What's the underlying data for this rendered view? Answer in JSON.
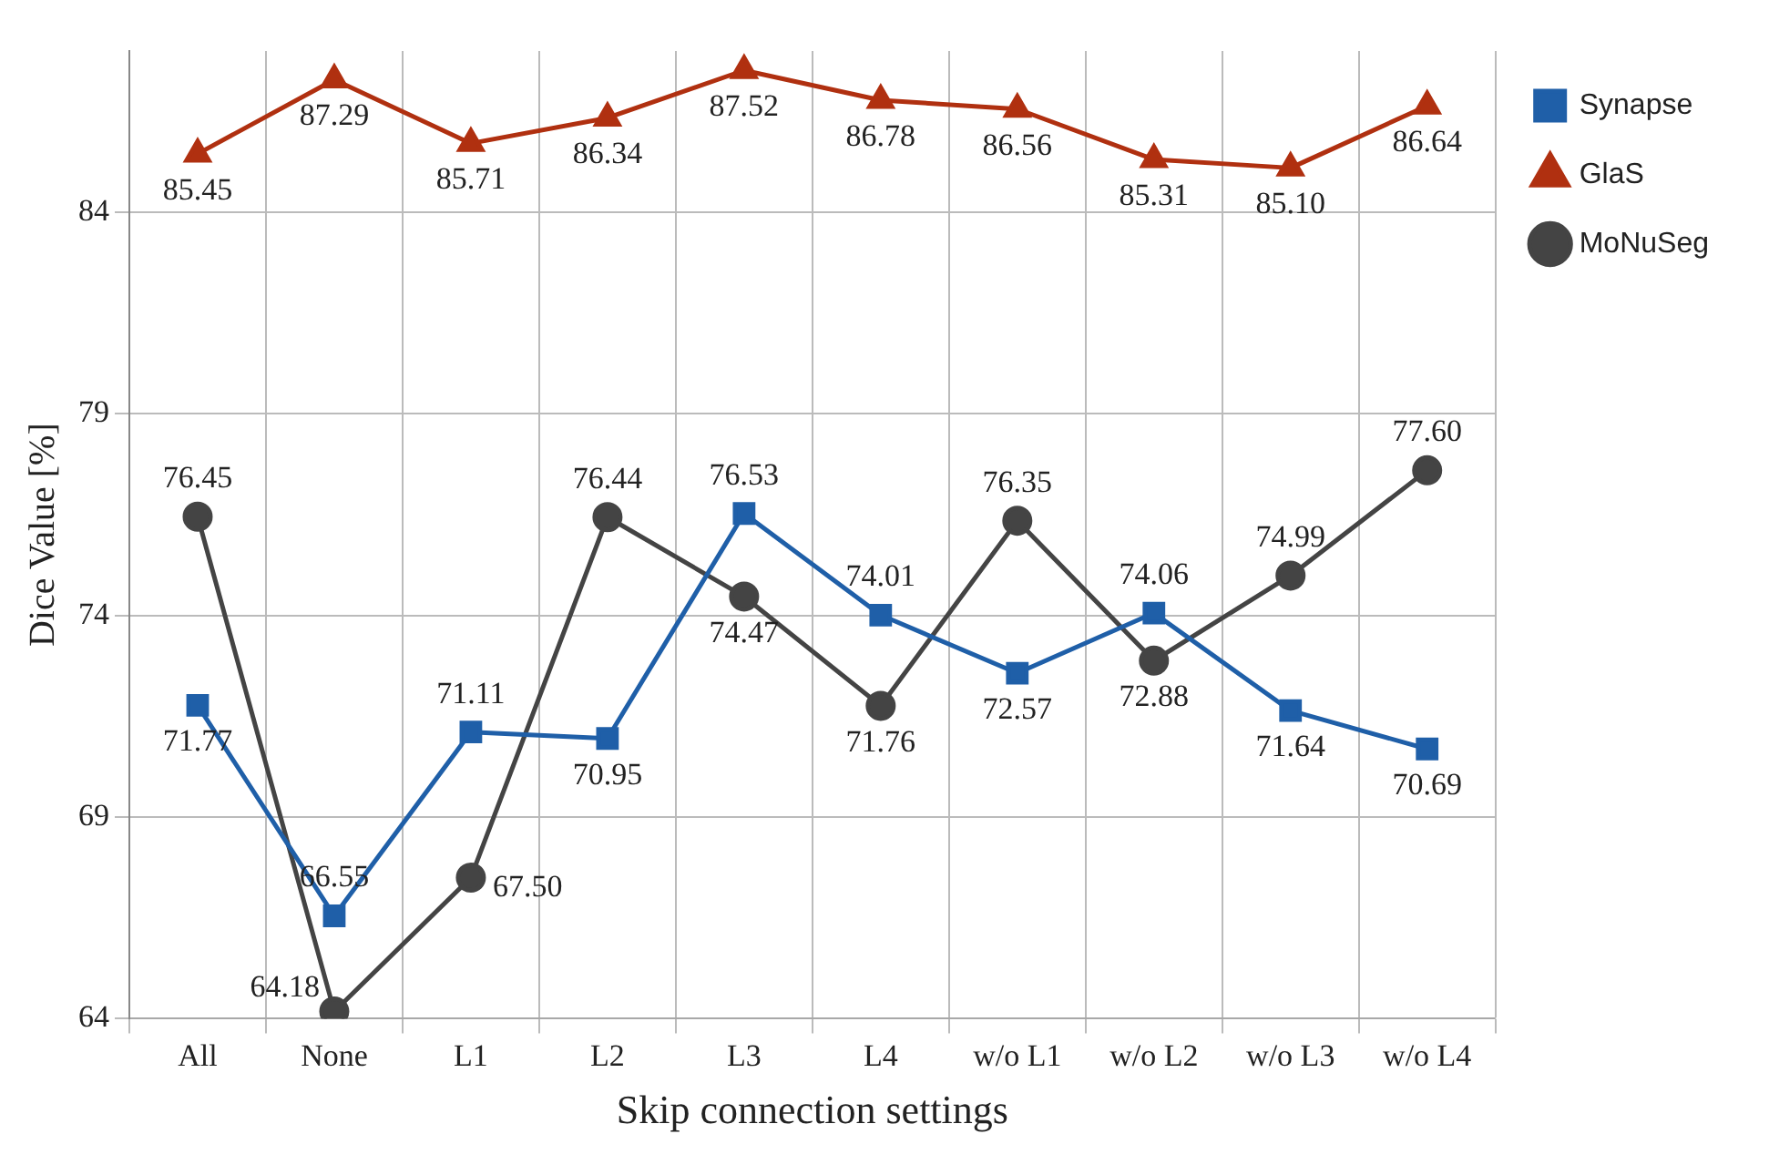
{
  "chart_data": {
    "type": "line",
    "xlabel": "Skip connection settings",
    "ylabel": "Dice Value [%]",
    "categories": [
      "All",
      "None",
      "L1",
      "L2",
      "L3",
      "L4",
      "w/o L1",
      "w/o L2",
      "w/o L3",
      "w/o L4"
    ],
    "series": [
      {
        "name": "Synapse",
        "color": "#1f5fa8",
        "marker": "square",
        "values": [
          71.77,
          66.55,
          71.11,
          70.95,
          76.53,
          74.01,
          72.57,
          74.06,
          71.64,
          70.69
        ],
        "value_labels": [
          "71.77",
          "66.55",
          "71.11",
          "70.95",
          "76.53",
          "74.01",
          "72.57",
          "74.06",
          "71.64",
          "70.69"
        ]
      },
      {
        "name": "GlaS",
        "color": "#b03010",
        "marker": "triangle",
        "values": [
          85.45,
          87.29,
          85.71,
          86.34,
          87.52,
          86.78,
          86.56,
          85.31,
          85.1,
          86.64
        ],
        "value_labels": [
          "85.45",
          "87.29",
          "85.71",
          "86.34",
          "87.52",
          "86.78",
          "86.56",
          "85.31",
          "85.10",
          "86.64"
        ]
      },
      {
        "name": "MoNuSeg",
        "color": "#444444",
        "marker": "circle",
        "values": [
          76.45,
          64.18,
          67.5,
          76.44,
          74.47,
          71.76,
          76.35,
          72.88,
          74.99,
          77.6
        ],
        "value_labels": [
          "76.45",
          "64.18",
          "67.50",
          "76.44",
          "74.47",
          "71.76",
          "76.35",
          "72.88",
          "74.99",
          "77.60"
        ]
      }
    ],
    "ylim": [
      64,
      88
    ],
    "yticks": [
      64,
      69,
      74,
      79,
      84
    ],
    "grid": true,
    "legend": "right"
  }
}
